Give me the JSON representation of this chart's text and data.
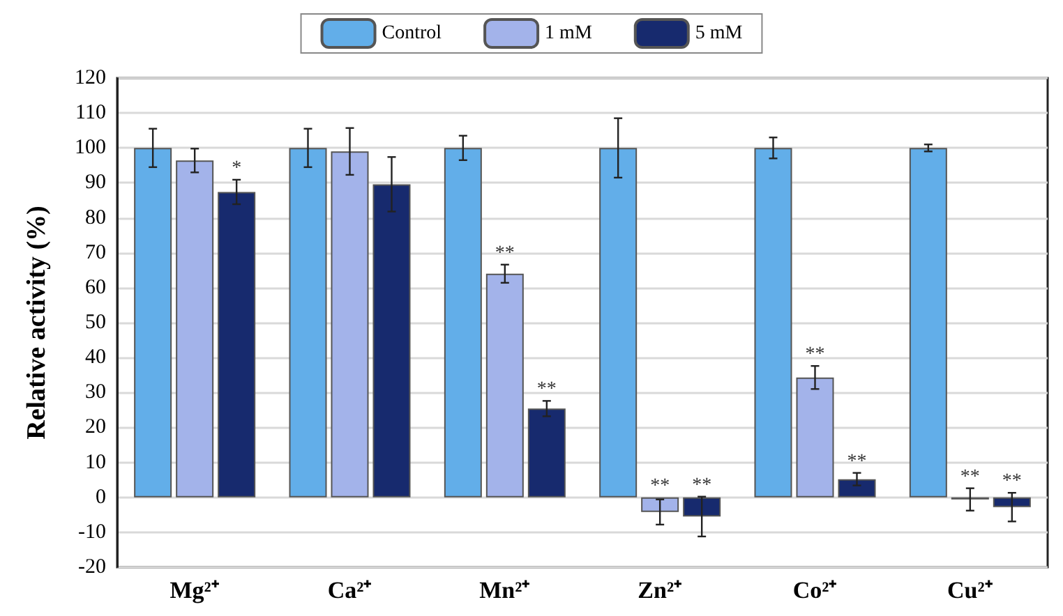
{
  "chart_data": {
    "type": "bar",
    "ylabel": "Relative activity (%)",
    "categories": [
      "Mg²⁺",
      "Ca²⁺",
      "Mn²⁺",
      "Zn²⁺",
      "Co²⁺",
      "Cu²⁺"
    ],
    "series": [
      {
        "name": "Control",
        "color": "#62aee9",
        "values": [
          100,
          100,
          100,
          100,
          100,
          100
        ],
        "errors": [
          5.5,
          5.5,
          3.5,
          8.5,
          3,
          1
        ]
      },
      {
        "name": "1 mM",
        "color": "#a3b3ea",
        "values": [
          96.4,
          99,
          64,
          -4.2,
          34.3,
          -0.6
        ],
        "errors": [
          3.4,
          6.7,
          2.6,
          3.6,
          3.3,
          3.2
        ],
        "value_labels": [
          null,
          null,
          "**",
          "**",
          "**",
          "**"
        ]
      },
      {
        "name": "5 mM",
        "color": "#172a6e",
        "values": [
          87.4,
          89.6,
          25.4,
          -5.5,
          5.2,
          -2.8
        ],
        "errors": [
          3.5,
          7.8,
          2.2,
          5.7,
          1.8,
          4.1
        ],
        "value_labels": [
          "*",
          null,
          "**",
          "**",
          "**",
          "**"
        ]
      }
    ],
    "ylim": [
      -20,
      120
    ],
    "yticks": [
      -20,
      -10,
      0,
      10,
      20,
      30,
      40,
      50,
      60,
      70,
      80,
      90,
      100,
      110,
      120
    ],
    "grid": "y",
    "legend": "top"
  }
}
